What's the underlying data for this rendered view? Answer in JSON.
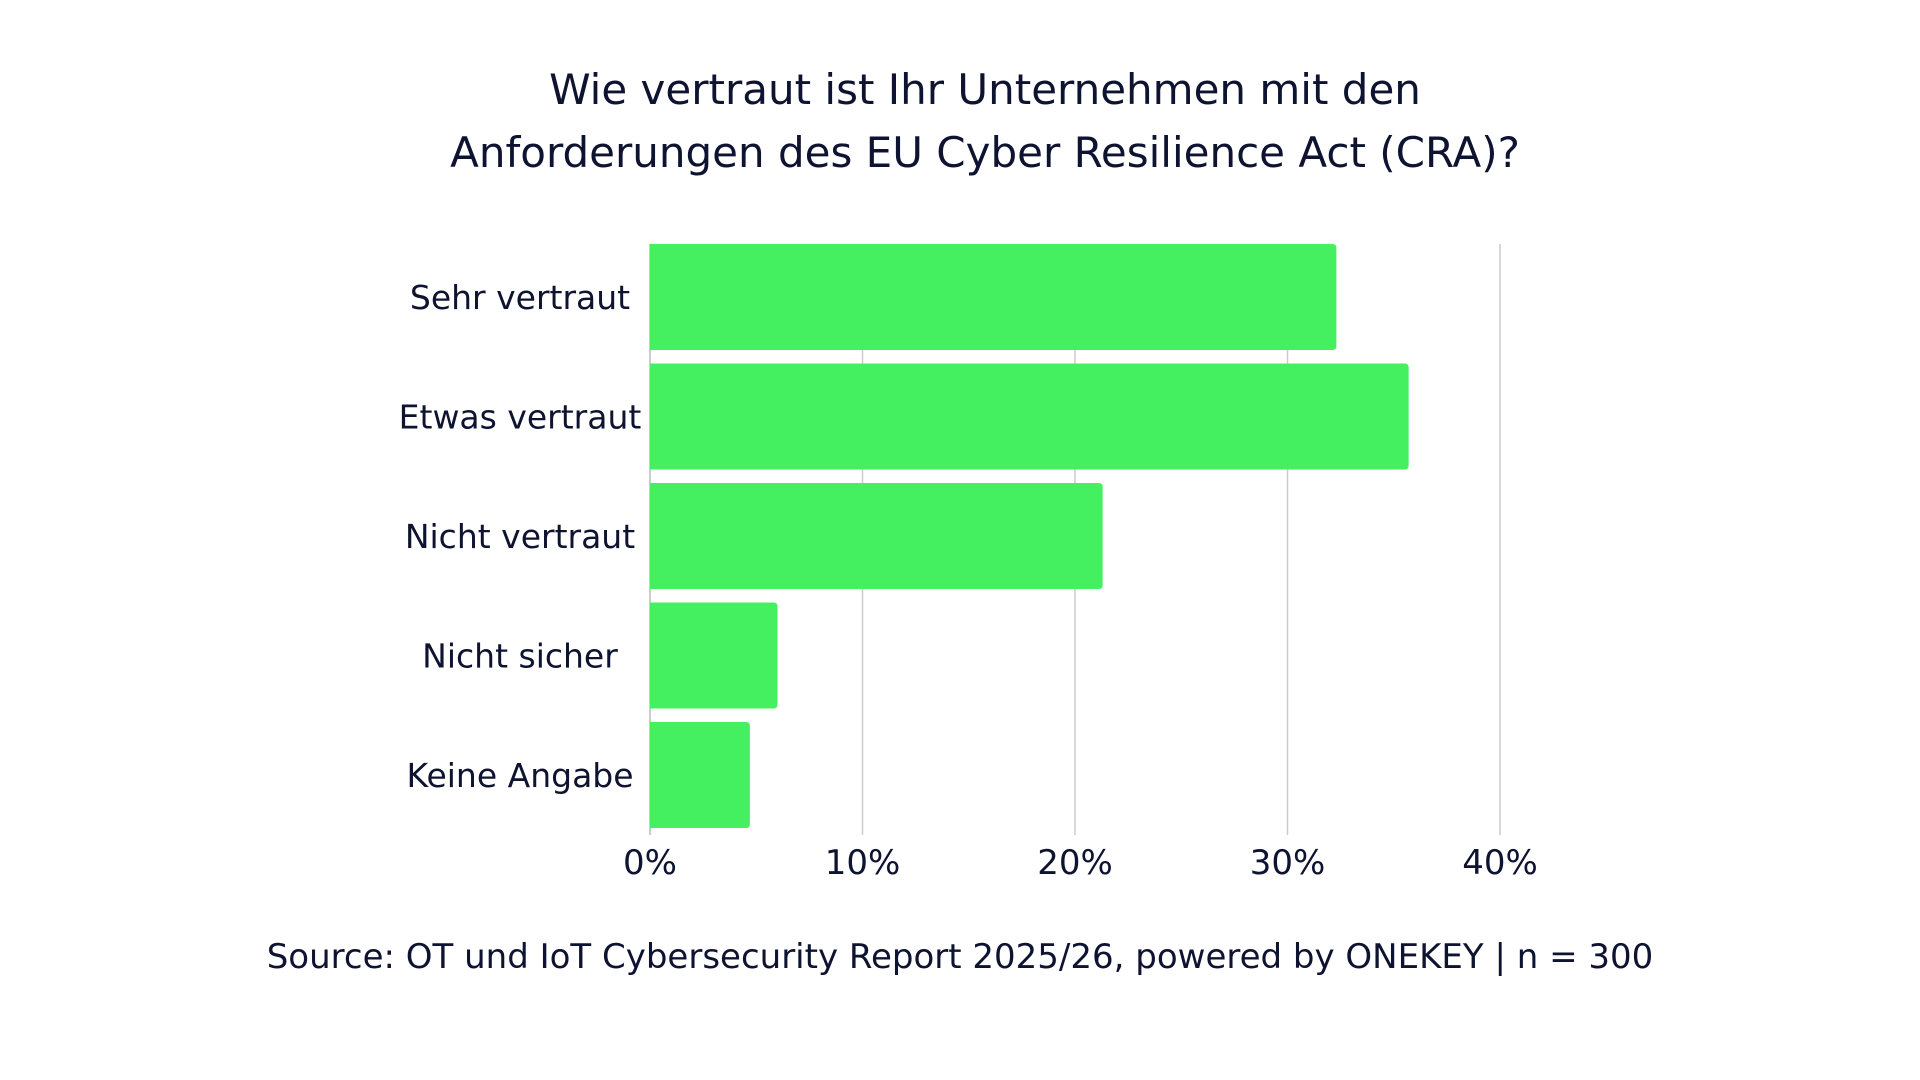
{
  "chart_data": {
    "type": "bar",
    "orientation": "horizontal",
    "title_lines": [
      "Wie vertraut ist Ihr Unternehmen mit den",
      "Anforderungen des EU Cyber Resilience Act (CRA)?"
    ],
    "categories": [
      "Sehr vertraut",
      "Etwas vertraut",
      "Nicht vertraut",
      "Nicht sicher",
      "Keine Angabe"
    ],
    "values": [
      32.3,
      35.7,
      21.3,
      6.0,
      4.7
    ],
    "value_unit": "%",
    "xlim": [
      0,
      40
    ],
    "x_ticks": [
      0,
      10,
      20,
      30,
      40
    ],
    "x_tick_labels": [
      "0%",
      "10%",
      "20%",
      "30%",
      "40%"
    ],
    "grid": true,
    "bar_color": "#44f05f",
    "source": "Source: OT und IoT Cybersecurity Report 2025/26, powered by ONEKEY | n = 300"
  }
}
